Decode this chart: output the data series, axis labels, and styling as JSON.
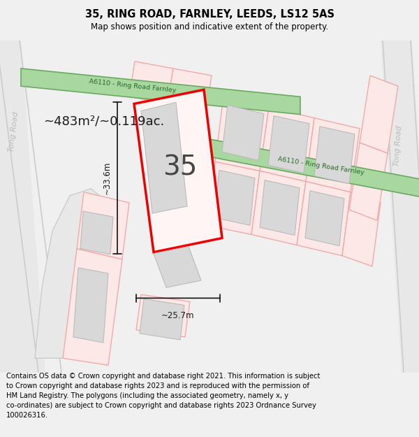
{
  "title": "35, RING ROAD, FARNLEY, LEEDS, LS12 5AS",
  "subtitle": "Map shows position and indicative extent of the property.",
  "footer": "Contains OS data © Crown copyright and database right 2021. This information is subject\nto Crown copyright and database rights 2023 and is reproduced with the permission of\nHM Land Registry. The polygons (including the associated geometry, namely x, y\nco-ordinates) are subject to Crown copyright and database rights 2023 Ordnance Survey\n100026316.",
  "area_label": "~483m²/~0.119ac.",
  "width_label": "~25.7m",
  "height_label": "~33.6m",
  "property_number": "35",
  "bg_color": "#f0f0f0",
  "map_bg": "#ffffff",
  "road_green_color": "#a8d8a0",
  "road_green_border": "#6aaa60",
  "road_label_color": "#2a6a2a",
  "road_outline_color": "#cccccc",
  "property_outline_color": "#ee0000",
  "building_fill": "#d8d8d8",
  "building_outline": "#bbbbbb",
  "plot_fill": "#fde8e8",
  "plot_edge": "#f0aaaa",
  "tong_road_fill": "#e8e8e8",
  "tong_road_edge": "#cccccc",
  "dim_line_color": "#111111",
  "title_fontsize": 10.5,
  "subtitle_fontsize": 8.5,
  "footer_fontsize": 7.2,
  "area_fontsize": 13,
  "number_fontsize": 28,
  "dim_fontsize": 8.5
}
